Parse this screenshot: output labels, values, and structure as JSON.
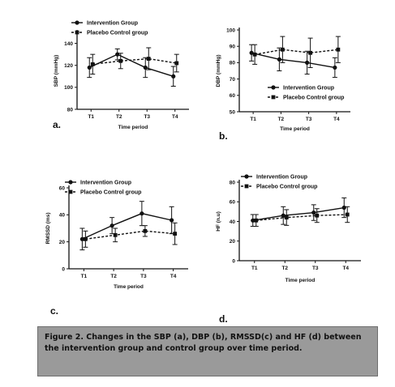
{
  "caption": "Figure 2. Changes in the SBP (a), DBP (b), RMSSD(c) and HF (d) between the intervention group and control group over time period.",
  "chart_data": [
    {
      "type": "line",
      "panel": "a.",
      "ylabel": "SBP (mmHg)",
      "xlabel": "Time period",
      "categories": [
        "T1",
        "T2",
        "T3",
        "T4"
      ],
      "ylim": [
        80,
        150
      ],
      "yticks": [
        80,
        100,
        120,
        140
      ],
      "legend_position": "top",
      "series": [
        {
          "name": "Intervention Group",
          "style": "solid",
          "marker": "circle",
          "values": [
            118,
            130,
            118,
            110
          ],
          "error": [
            9,
            5,
            9,
            9
          ]
        },
        {
          "name": "Placebo Control group",
          "style": "dashed",
          "marker": "square",
          "values": [
            121,
            124,
            126,
            122
          ],
          "error": [
            9,
            7,
            10,
            8
          ]
        }
      ]
    },
    {
      "type": "line",
      "panel": "b.",
      "ylabel": "DBP (mmHg)",
      "xlabel": "Time period",
      "categories": [
        "T1",
        "T2",
        "T3",
        "T4"
      ],
      "ylim": [
        50,
        100
      ],
      "yticks": [
        50,
        60,
        70,
        80,
        90,
        100
      ],
      "legend_position": "bottom-right",
      "series": [
        {
          "name": "Intervention Group",
          "style": "solid",
          "marker": "circle",
          "values": [
            86,
            82,
            80,
            77
          ],
          "error": [
            5,
            7,
            7,
            6
          ]
        },
        {
          "name": "Placebo Control group",
          "style": "dashed",
          "marker": "square",
          "values": [
            85,
            88,
            86,
            88
          ],
          "error": [
            6,
            8,
            9,
            8
          ]
        }
      ]
    },
    {
      "type": "line",
      "panel": "c.",
      "ylabel": "RMSSD (ms)",
      "xlabel": "Time period",
      "categories": [
        "T1",
        "T2",
        "T3",
        "T4"
      ],
      "ylim": [
        0,
        60
      ],
      "yticks": [
        0,
        20,
        40,
        60
      ],
      "legend_position": "top",
      "series": [
        {
          "name": "Intervention Group",
          "style": "solid",
          "marker": "circle",
          "values": [
            22,
            32,
            41,
            36
          ],
          "error": [
            8,
            6,
            9,
            10
          ]
        },
        {
          "name": "Placebo Control group",
          "style": "dashed",
          "marker": "square",
          "values": [
            22,
            25,
            28,
            26
          ],
          "error": [
            6,
            5,
            4,
            8
          ]
        }
      ]
    },
    {
      "type": "line",
      "panel": "d.",
      "ylabel": "HF (n.u)",
      "xlabel": "Time period",
      "categories": [
        "T1",
        "T2",
        "T3",
        "T4"
      ],
      "ylim": [
        0,
        80
      ],
      "yticks": [
        0,
        20,
        40,
        60,
        80
      ],
      "legend_position": "top",
      "series": [
        {
          "name": "Intervention Group",
          "style": "solid",
          "marker": "circle",
          "values": [
            41,
            46,
            49,
            54
          ],
          "error": [
            6,
            9,
            8,
            10
          ]
        },
        {
          "name": "Placebo Control group",
          "style": "dashed",
          "marker": "square",
          "values": [
            41,
            44,
            46,
            47
          ],
          "error": [
            6,
            8,
            7,
            8
          ]
        }
      ]
    }
  ]
}
